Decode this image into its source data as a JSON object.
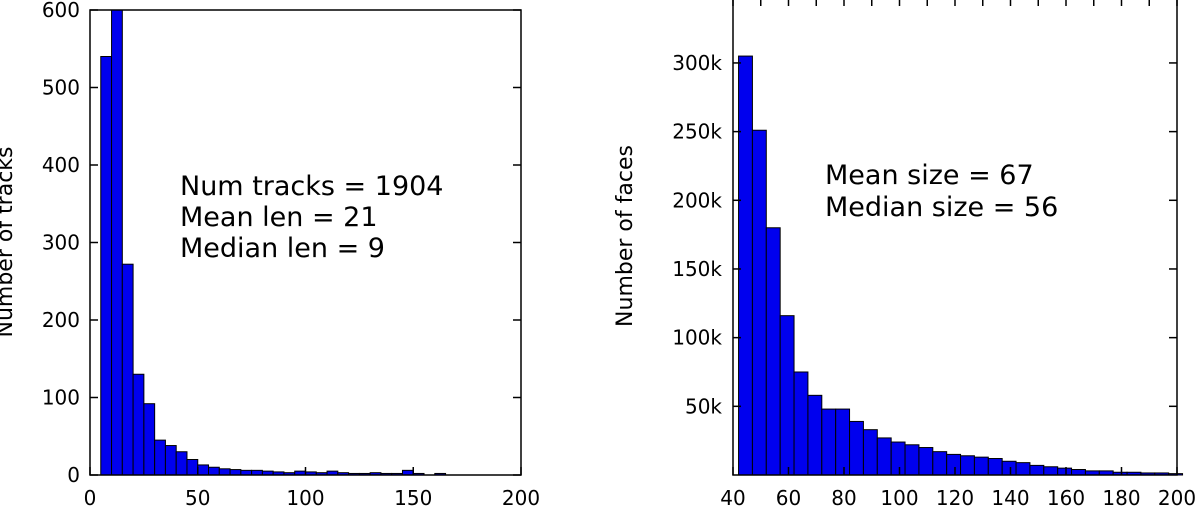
{
  "chart_data": [
    {
      "type": "bar",
      "title": "",
      "xlabel": "",
      "ylabel": "Number of tracks",
      "xlim": [
        0,
        200
      ],
      "ylim": [
        0,
        600
      ],
      "x_ticks": [
        0,
        50,
        100,
        150,
        200
      ],
      "x_tick_labels": [
        "0",
        "50",
        "100",
        "150",
        "200"
      ],
      "y_ticks": [
        0,
        100,
        200,
        300,
        400,
        500,
        600
      ],
      "y_tick_labels": [
        "0",
        "100",
        "200",
        "300",
        "400",
        "500",
        "600"
      ],
      "bin_width": 5,
      "bin_start": 5,
      "values": [
        540,
        600,
        272,
        130,
        92,
        45,
        38,
        30,
        20,
        13,
        10,
        8,
        7,
        6,
        6,
        5,
        4,
        3,
        5,
        4,
        3,
        5,
        3,
        2,
        2,
        3,
        2,
        2,
        6,
        2,
        0,
        2
      ],
      "clip_top": true,
      "annotations": [
        "Num tracks = 1904",
        "Mean len = 21",
        "Median len = 9"
      ],
      "bar_color": "#0000ee",
      "grid": false
    },
    {
      "type": "bar",
      "title": "",
      "xlabel": "",
      "ylabel": "Number of faces",
      "xlim": [
        40,
        200
      ],
      "ylim": [
        0,
        340000
      ],
      "x_ticks": [
        40,
        60,
        80,
        100,
        120,
        140,
        160,
        180,
        200
      ],
      "x_tick_labels": [
        "40",
        "60",
        "80",
        "100",
        "120",
        "140",
        "160",
        "180",
        "200"
      ],
      "y_ticks": [
        50000,
        100000,
        150000,
        200000,
        250000,
        300000
      ],
      "y_tick_labels": [
        "50k",
        "100k",
        "150k",
        "200k",
        "250k",
        "300k"
      ],
      "bin_width": 5,
      "bin_start": 42,
      "values": [
        305000,
        251000,
        180000,
        116000,
        75000,
        58000,
        48000,
        48000,
        39000,
        33000,
        27000,
        24000,
        22000,
        20000,
        17000,
        15000,
        14000,
        13000,
        12000,
        10000,
        9000,
        7000,
        6000,
        5000,
        4000,
        3000,
        3000,
        2000,
        2000,
        1500,
        1500,
        1000
      ],
      "annotations": [
        "Mean size = 67",
        "Median size = 56"
      ],
      "bar_color": "#0000ee",
      "grid": false
    }
  ]
}
